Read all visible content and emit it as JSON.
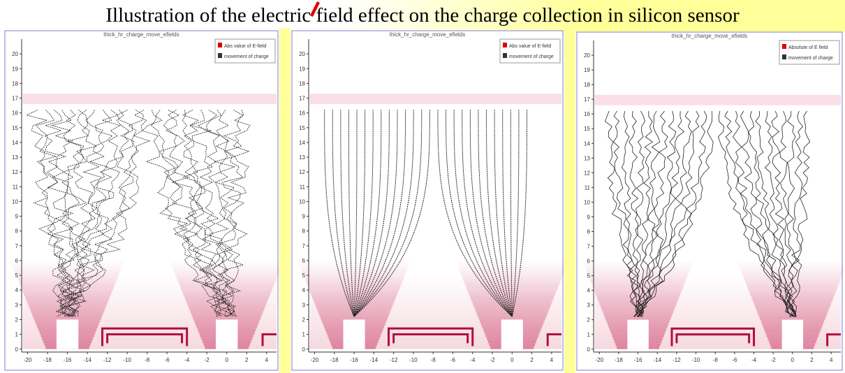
{
  "header": {
    "title": "Illustration of the electric field effect on the charge collection in silicon sensor"
  },
  "axes": {
    "yticks": [
      0,
      1,
      2,
      3,
      4,
      5,
      6,
      7,
      8,
      9,
      10,
      11,
      12,
      13,
      14,
      15,
      16,
      17,
      18,
      19,
      20
    ],
    "xticks": [
      -20,
      -18,
      -16,
      -14,
      -12,
      -10,
      -8,
      -6,
      -4,
      -2,
      0,
      2,
      4
    ]
  },
  "panels": [
    {
      "title": "thick_hr_charge_move_efields",
      "legend": [
        "Abs value of E-field",
        "movement of charge"
      ]
    },
    {
      "title": "thick_hr_charge_move_efields",
      "legend": [
        "Abs value of E-field",
        "movement of charge"
      ]
    },
    {
      "title": "thick_hr_charge_move_efields",
      "legend": [
        "Absolute of E field",
        "movement of charge"
      ]
    }
  ]
}
